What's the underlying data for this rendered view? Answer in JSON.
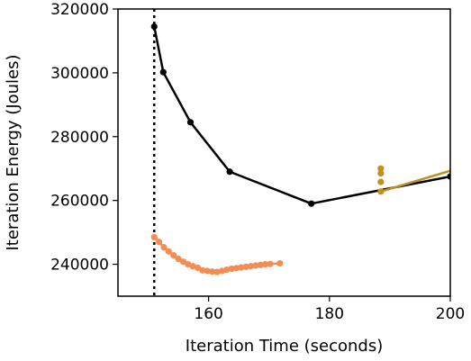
{
  "chart_data": {
    "type": "line",
    "xlabel": "Iteration Time (seconds)",
    "ylabel": "Iteration Energy (Joules)",
    "xlim": [
      145,
      200
    ],
    "ylim": [
      230000,
      320000
    ],
    "x_ticks": [
      160,
      180,
      200
    ],
    "y_ticks": [
      240000,
      260000,
      280000,
      300000,
      320000
    ],
    "grid": false,
    "reference_line": {
      "x": 151,
      "style": "dotted",
      "color": "#000000"
    },
    "series": [
      {
        "color": "#000000",
        "markers": true,
        "points": [
          [
            151,
            314500
          ],
          [
            152.5,
            300200
          ],
          [
            157,
            284500
          ],
          [
            163.5,
            269000
          ],
          [
            177,
            259000
          ],
          [
            200,
            267500
          ]
        ]
      },
      {
        "color": "#f28e55",
        "markers": true,
        "points": [
          [
            151,
            248500
          ],
          [
            151.8,
            247000
          ],
          [
            152.6,
            245300
          ],
          [
            153.4,
            244000
          ],
          [
            154.2,
            242800
          ],
          [
            155.0,
            241700
          ],
          [
            155.8,
            240800
          ],
          [
            156.6,
            240000
          ],
          [
            157.4,
            239400
          ],
          [
            158.2,
            238900
          ],
          [
            159.0,
            238100
          ],
          [
            159.8,
            237900
          ],
          [
            160.6,
            237700
          ],
          [
            161.4,
            237600
          ],
          [
            162.2,
            237900
          ],
          [
            163.0,
            238300
          ],
          [
            163.8,
            238600
          ],
          [
            164.6,
            238800
          ],
          [
            165.4,
            239000
          ],
          [
            166.2,
            239200
          ],
          [
            167.0,
            239400
          ],
          [
            167.8,
            239600
          ],
          [
            168.6,
            239800
          ],
          [
            169.4,
            240000
          ],
          [
            170.2,
            240100
          ],
          [
            171.8,
            240300
          ]
        ]
      },
      {
        "color": "#c0911e",
        "markers": true,
        "points": [
          [
            188.5,
            270000
          ],
          [
            188.5,
            268500
          ],
          [
            188.5,
            265800
          ],
          [
            188.5,
            262800
          ]
        ]
      },
      {
        "color": "#c0911e",
        "markers": false,
        "points": [
          [
            188.5,
            262800
          ],
          [
            200,
            269300
          ]
        ]
      }
    ]
  }
}
